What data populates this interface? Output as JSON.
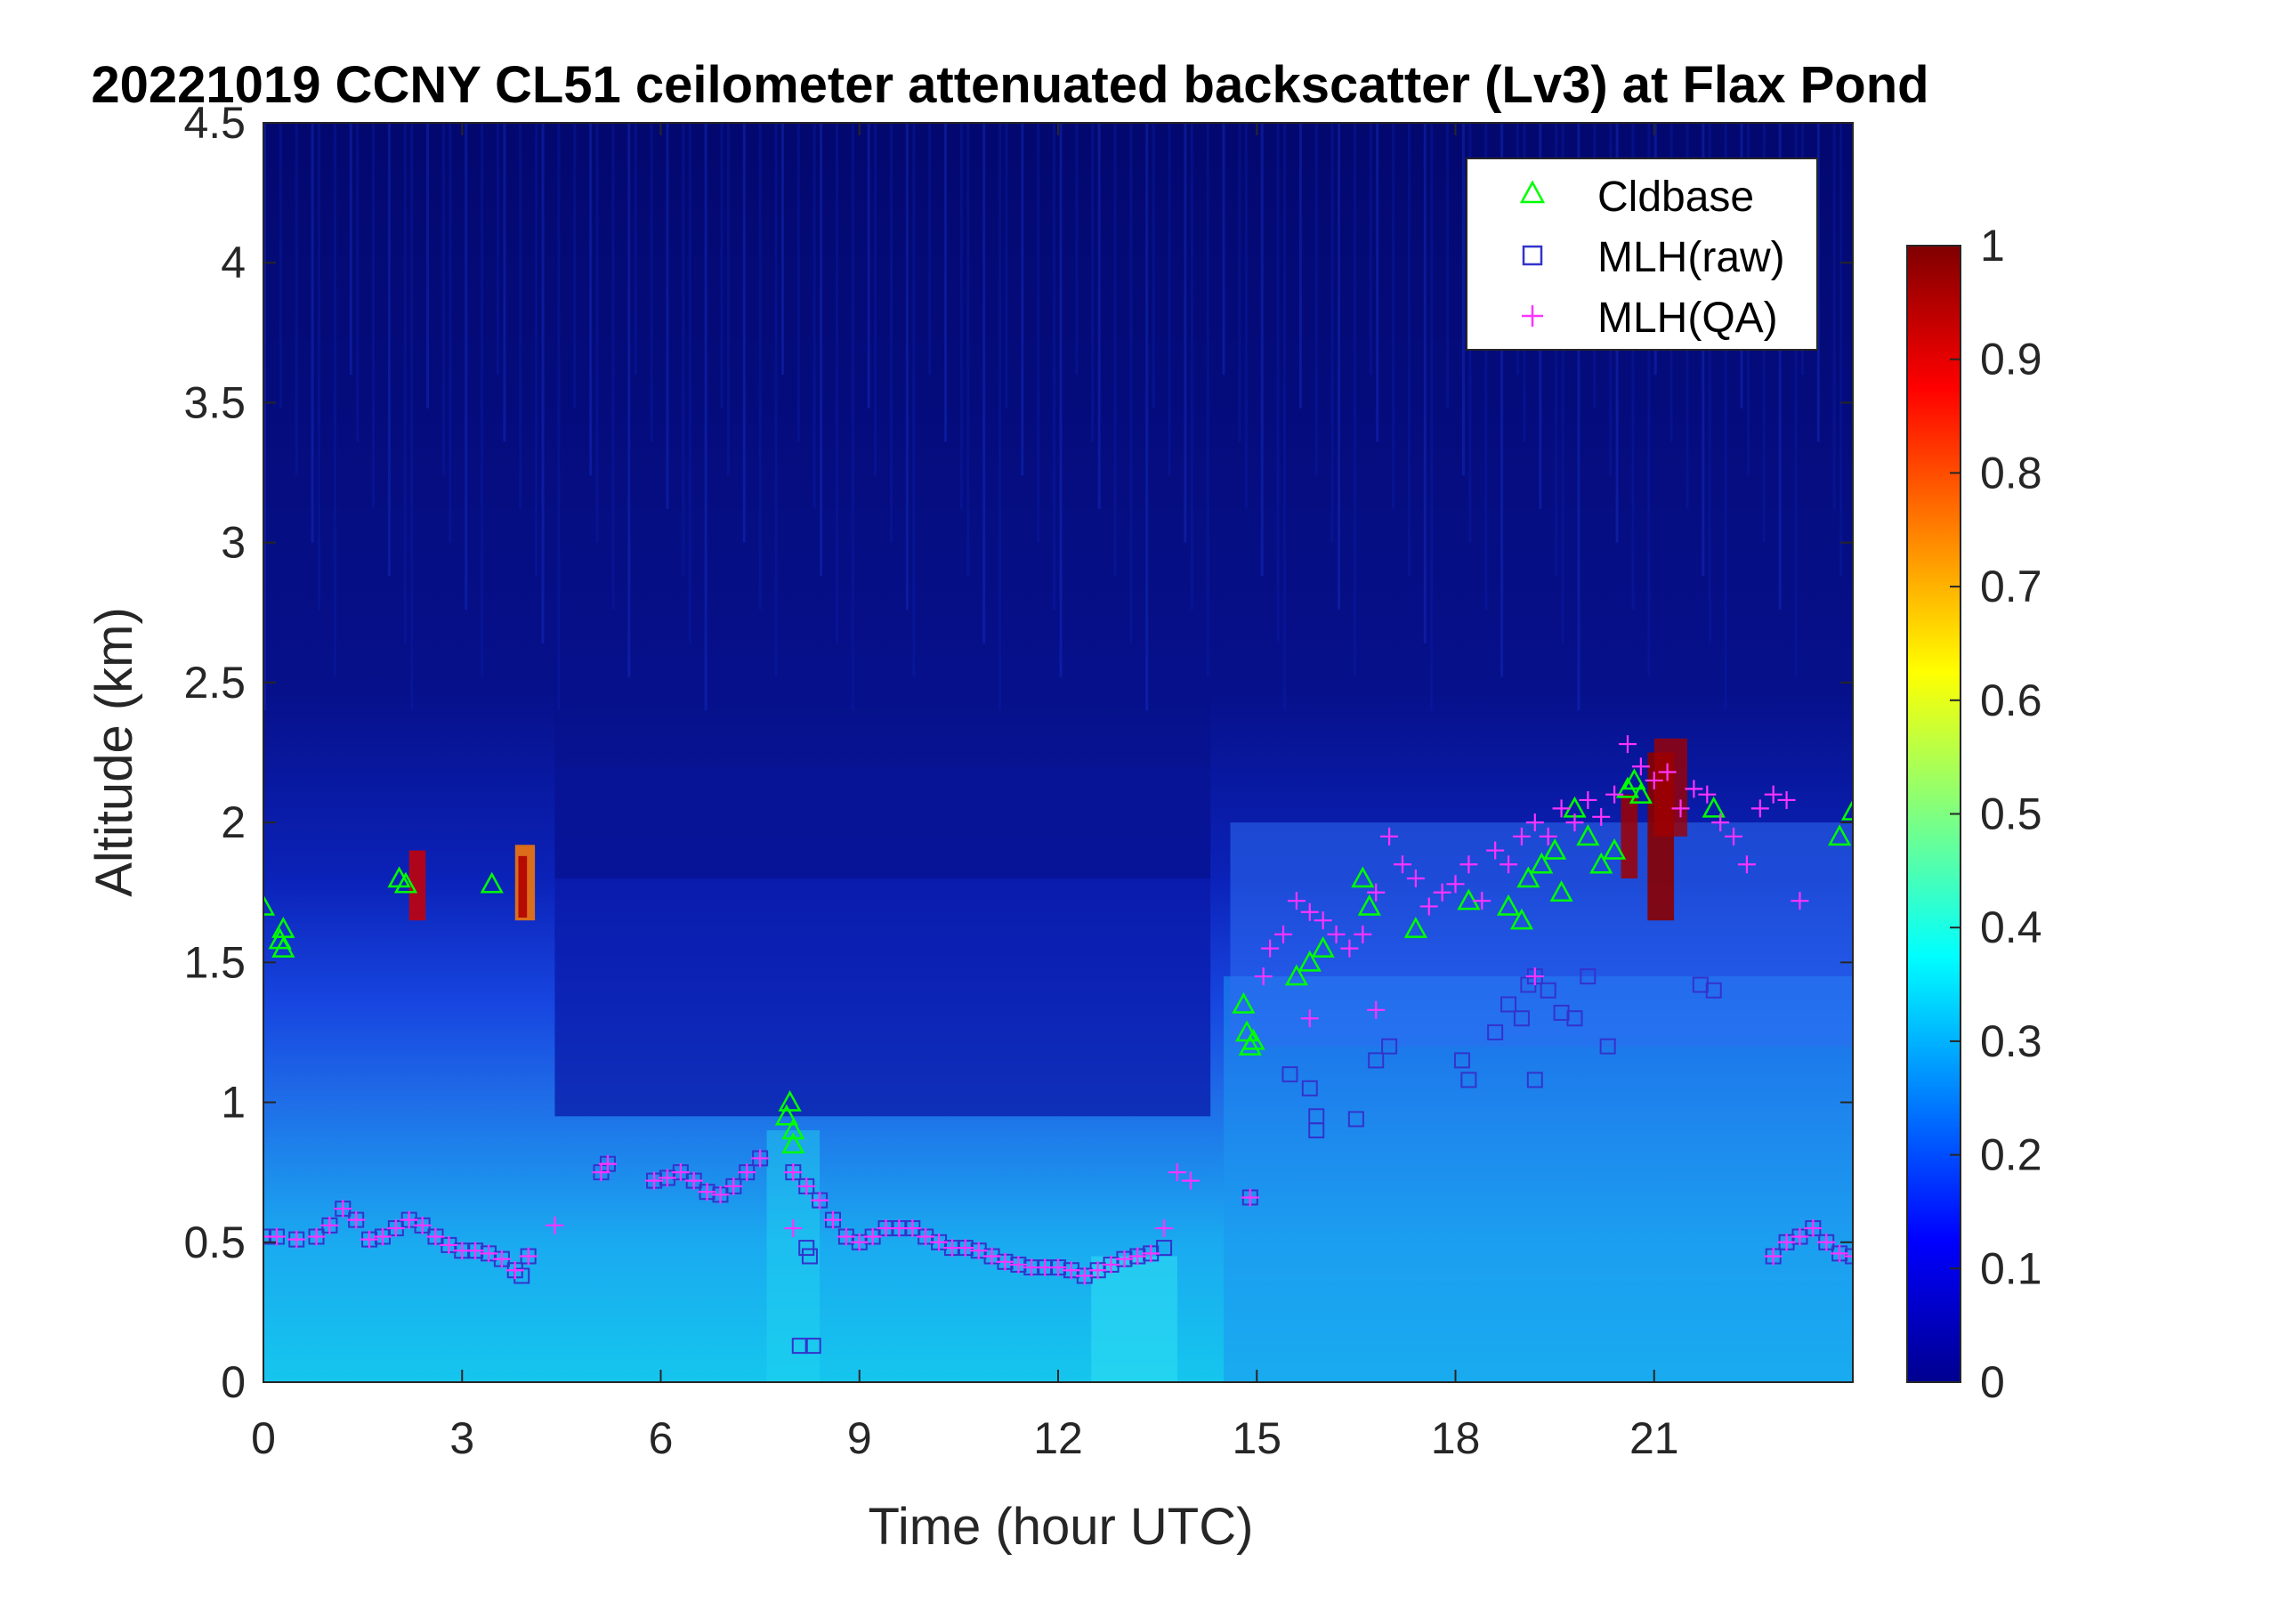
{
  "chart_data": {
    "type": "heatmap",
    "title": "20221019 CCNY CL51 ceilometer attenuated backscatter (Lv3) at Flax Pond",
    "xlabel": "Time (hour UTC)",
    "ylabel": "Altitude (km)",
    "xlim": [
      0,
      24
    ],
    "ylim": [
      0,
      4.5
    ],
    "xticks": [
      0,
      3,
      6,
      9,
      12,
      15,
      18,
      21
    ],
    "xtick_labels": [
      "0",
      "3",
      "6",
      "9",
      "12",
      "15",
      "18",
      "21"
    ],
    "yticks": [
      0,
      0.5,
      1,
      1.5,
      2,
      2.5,
      3,
      3.5,
      4,
      4.5
    ],
    "ytick_labels": [
      "0",
      "0.5",
      "1",
      "1.5",
      "2",
      "2.5",
      "3",
      "3.5",
      "4",
      "4.5"
    ],
    "colormap": "jet",
    "colorbar": {
      "range": [
        0,
        1
      ],
      "ticks": [
        0,
        0.1,
        0.2,
        0.3,
        0.4,
        0.5,
        0.6,
        0.7,
        0.8,
        0.9,
        1
      ],
      "tick_labels": [
        "0",
        "0.1",
        "0.2",
        "0.3",
        "0.4",
        "0.5",
        "0.6",
        "0.7",
        "0.8",
        "0.9",
        "1"
      ]
    },
    "legend": {
      "placement": "top-right",
      "entries": [
        {
          "name": "Cldbase",
          "marker": "triangle",
          "color": "#00ff00"
        },
        {
          "name": "MLH(raw)",
          "marker": "square",
          "color": "#3333cc"
        },
        {
          "name": "MLH(QA)",
          "marker": "plus",
          "color": "#ff33ff"
        }
      ]
    },
    "series": [
      {
        "name": "Cldbase",
        "points": [
          [
            0.0,
            1.7
          ],
          [
            0.25,
            1.58
          ],
          [
            0.3,
            1.55
          ],
          [
            0.3,
            1.62
          ],
          [
            2.05,
            1.8
          ],
          [
            2.15,
            1.78
          ],
          [
            3.45,
            1.78
          ],
          [
            7.9,
            0.95
          ],
          [
            8.0,
            0.9
          ],
          [
            8.0,
            0.85
          ],
          [
            7.95,
            1.0
          ],
          [
            14.8,
            1.35
          ],
          [
            14.85,
            1.25
          ],
          [
            14.9,
            1.2
          ],
          [
            14.95,
            1.22
          ],
          [
            15.6,
            1.45
          ],
          [
            15.8,
            1.5
          ],
          [
            16.0,
            1.55
          ],
          [
            16.6,
            1.8
          ],
          [
            16.7,
            1.7
          ],
          [
            17.4,
            1.62
          ],
          [
            18.2,
            1.72
          ],
          [
            18.8,
            1.7
          ],
          [
            19.0,
            1.65
          ],
          [
            19.1,
            1.8
          ],
          [
            19.3,
            1.85
          ],
          [
            19.5,
            1.9
          ],
          [
            19.6,
            1.75
          ],
          [
            19.8,
            2.05
          ],
          [
            20.0,
            1.95
          ],
          [
            20.2,
            1.85
          ],
          [
            20.4,
            1.9
          ],
          [
            20.6,
            2.12
          ],
          [
            20.7,
            2.15
          ],
          [
            20.8,
            2.1
          ],
          [
            21.9,
            2.05
          ],
          [
            23.8,
            1.95
          ],
          [
            24.0,
            2.04
          ]
        ]
      },
      {
        "name": "MLH(raw)",
        "points": [
          [
            0.0,
            0.52
          ],
          [
            0.2,
            0.52
          ],
          [
            0.5,
            0.51
          ],
          [
            0.8,
            0.52
          ],
          [
            1.0,
            0.56
          ],
          [
            1.2,
            0.62
          ],
          [
            1.4,
            0.58
          ],
          [
            1.6,
            0.51
          ],
          [
            1.8,
            0.52
          ],
          [
            2.0,
            0.55
          ],
          [
            2.2,
            0.58
          ],
          [
            2.4,
            0.56
          ],
          [
            2.6,
            0.52
          ],
          [
            2.8,
            0.49
          ],
          [
            3.0,
            0.47
          ],
          [
            3.2,
            0.47
          ],
          [
            3.4,
            0.46
          ],
          [
            3.6,
            0.44
          ],
          [
            3.8,
            0.4
          ],
          [
            3.9,
            0.38
          ],
          [
            4.0,
            0.45
          ],
          [
            5.1,
            0.75
          ],
          [
            5.2,
            0.78
          ],
          [
            5.9,
            0.72
          ],
          [
            6.1,
            0.73
          ],
          [
            6.3,
            0.75
          ],
          [
            6.5,
            0.72
          ],
          [
            6.7,
            0.68
          ],
          [
            6.9,
            0.67
          ],
          [
            7.1,
            0.7
          ],
          [
            7.3,
            0.75
          ],
          [
            7.5,
            0.8
          ],
          [
            8.0,
            0.75
          ],
          [
            8.2,
            0.7
          ],
          [
            8.4,
            0.65
          ],
          [
            8.6,
            0.58
          ],
          [
            8.8,
            0.52
          ],
          [
            9.0,
            0.5
          ],
          [
            9.2,
            0.52
          ],
          [
            9.4,
            0.55
          ],
          [
            9.6,
            0.55
          ],
          [
            9.8,
            0.55
          ],
          [
            10.0,
            0.52
          ],
          [
            10.2,
            0.5
          ],
          [
            10.4,
            0.48
          ],
          [
            10.6,
            0.48
          ],
          [
            10.8,
            0.47
          ],
          [
            11.0,
            0.45
          ],
          [
            11.2,
            0.43
          ],
          [
            11.4,
            0.42
          ],
          [
            11.6,
            0.41
          ],
          [
            11.8,
            0.41
          ],
          [
            12.0,
            0.41
          ],
          [
            12.2,
            0.4
          ],
          [
            12.4,
            0.38
          ],
          [
            12.6,
            0.4
          ],
          [
            12.8,
            0.42
          ],
          [
            13.0,
            0.44
          ],
          [
            13.2,
            0.45
          ],
          [
            13.4,
            0.46
          ],
          [
            13.6,
            0.48
          ],
          [
            8.2,
            0.48
          ],
          [
            8.25,
            0.45
          ],
          [
            8.1,
            0.13
          ],
          [
            8.3,
            0.13
          ],
          [
            14.9,
            0.66
          ],
          [
            15.5,
            1.1
          ],
          [
            15.8,
            1.05
          ],
          [
            15.9,
            0.95
          ],
          [
            15.9,
            0.9
          ],
          [
            16.5,
            0.94
          ],
          [
            16.8,
            1.15
          ],
          [
            17.0,
            1.2
          ],
          [
            18.1,
            1.15
          ],
          [
            18.2,
            1.08
          ],
          [
            18.6,
            1.25
          ],
          [
            18.8,
            1.35
          ],
          [
            19.0,
            1.3
          ],
          [
            19.1,
            1.42
          ],
          [
            19.2,
            1.45
          ],
          [
            19.4,
            1.4
          ],
          [
            19.6,
            1.32
          ],
          [
            19.8,
            1.3
          ],
          [
            20.0,
            1.45
          ],
          [
            20.3,
            1.2
          ],
          [
            21.7,
            1.42
          ],
          [
            21.9,
            1.4
          ],
          [
            19.2,
            1.08
          ],
          [
            22.8,
            0.45
          ],
          [
            23.0,
            0.5
          ],
          [
            23.2,
            0.52
          ],
          [
            23.4,
            0.55
          ],
          [
            23.6,
            0.5
          ],
          [
            23.8,
            0.46
          ],
          [
            24.0,
            0.45
          ]
        ]
      },
      {
        "name": "MLH(QA)",
        "points": [
          [
            0.0,
            0.52
          ],
          [
            0.2,
            0.52
          ],
          [
            0.5,
            0.51
          ],
          [
            0.8,
            0.52
          ],
          [
            1.0,
            0.56
          ],
          [
            1.2,
            0.62
          ],
          [
            1.4,
            0.58
          ],
          [
            1.6,
            0.51
          ],
          [
            1.8,
            0.52
          ],
          [
            2.0,
            0.55
          ],
          [
            2.2,
            0.58
          ],
          [
            2.4,
            0.56
          ],
          [
            2.6,
            0.52
          ],
          [
            2.8,
            0.49
          ],
          [
            3.0,
            0.47
          ],
          [
            3.2,
            0.47
          ],
          [
            3.4,
            0.46
          ],
          [
            3.6,
            0.44
          ],
          [
            3.8,
            0.4
          ],
          [
            4.0,
            0.45
          ],
          [
            4.4,
            0.56
          ],
          [
            5.1,
            0.75
          ],
          [
            5.2,
            0.78
          ],
          [
            5.9,
            0.72
          ],
          [
            6.1,
            0.73
          ],
          [
            6.3,
            0.75
          ],
          [
            6.5,
            0.72
          ],
          [
            6.7,
            0.68
          ],
          [
            6.9,
            0.67
          ],
          [
            7.1,
            0.7
          ],
          [
            7.3,
            0.75
          ],
          [
            7.5,
            0.8
          ],
          [
            8.0,
            0.75
          ],
          [
            8.2,
            0.7
          ],
          [
            8.4,
            0.65
          ],
          [
            8.6,
            0.58
          ],
          [
            8.8,
            0.52
          ],
          [
            9.0,
            0.5
          ],
          [
            9.2,
            0.52
          ],
          [
            9.4,
            0.55
          ],
          [
            9.6,
            0.55
          ],
          [
            9.8,
            0.55
          ],
          [
            10.0,
            0.52
          ],
          [
            10.2,
            0.5
          ],
          [
            10.4,
            0.48
          ],
          [
            10.6,
            0.48
          ],
          [
            10.8,
            0.47
          ],
          [
            11.0,
            0.45
          ],
          [
            11.2,
            0.43
          ],
          [
            11.4,
            0.42
          ],
          [
            11.6,
            0.41
          ],
          [
            11.8,
            0.41
          ],
          [
            12.0,
            0.41
          ],
          [
            12.2,
            0.4
          ],
          [
            12.4,
            0.38
          ],
          [
            12.6,
            0.4
          ],
          [
            12.8,
            0.42
          ],
          [
            13.0,
            0.44
          ],
          [
            13.2,
            0.45
          ],
          [
            13.4,
            0.46
          ],
          [
            13.6,
            0.55
          ],
          [
            13.8,
            0.75
          ],
          [
            14.0,
            0.72
          ],
          [
            8.0,
            0.55
          ],
          [
            14.9,
            0.66
          ],
          [
            15.1,
            1.45
          ],
          [
            15.2,
            1.55
          ],
          [
            15.4,
            1.6
          ],
          [
            15.6,
            1.72
          ],
          [
            15.8,
            1.68
          ],
          [
            16.0,
            1.65
          ],
          [
            16.2,
            1.6
          ],
          [
            16.4,
            1.55
          ],
          [
            16.6,
            1.6
          ],
          [
            16.8,
            1.75
          ],
          [
            17.0,
            1.95
          ],
          [
            17.2,
            1.85
          ],
          [
            17.4,
            1.8
          ],
          [
            17.6,
            1.7
          ],
          [
            17.8,
            1.75
          ],
          [
            18.0,
            1.78
          ],
          [
            18.2,
            1.85
          ],
          [
            18.4,
            1.72
          ],
          [
            18.6,
            1.9
          ],
          [
            18.8,
            1.85
          ],
          [
            19.0,
            1.95
          ],
          [
            19.2,
            2.0
          ],
          [
            19.4,
            1.95
          ],
          [
            19.6,
            2.05
          ],
          [
            19.8,
            2.0
          ],
          [
            20.0,
            2.08
          ],
          [
            20.2,
            2.02
          ],
          [
            20.4,
            2.1
          ],
          [
            20.6,
            2.28
          ],
          [
            20.8,
            2.2
          ],
          [
            21.0,
            2.15
          ],
          [
            21.2,
            2.18
          ],
          [
            21.4,
            2.05
          ],
          [
            21.6,
            2.12
          ],
          [
            21.8,
            2.1
          ],
          [
            22.0,
            2.0
          ],
          [
            22.2,
            1.95
          ],
          [
            22.4,
            1.85
          ],
          [
            22.6,
            2.05
          ],
          [
            22.8,
            2.1
          ],
          [
            23.0,
            2.08
          ],
          [
            23.2,
            1.72
          ],
          [
            16.8,
            1.33
          ],
          [
            19.2,
            1.45
          ],
          [
            15.8,
            1.3
          ],
          [
            22.8,
            0.45
          ],
          [
            23.0,
            0.5
          ],
          [
            23.2,
            0.52
          ],
          [
            23.4,
            0.55
          ],
          [
            23.6,
            0.5
          ],
          [
            23.8,
            0.46
          ],
          [
            24.0,
            0.45
          ]
        ]
      }
    ]
  }
}
